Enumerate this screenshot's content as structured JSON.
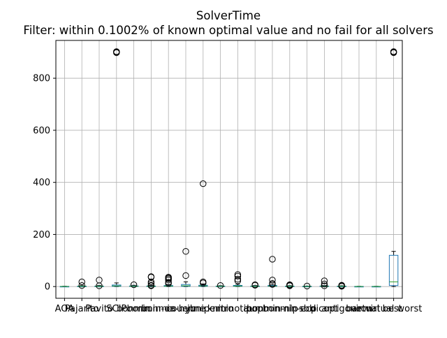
{
  "chart_data": {
    "type": "box",
    "title": "SolverTime",
    "subtitle": "Filter: within 0.1002% of known optimal value and no fail for all solvers",
    "xlabel": "",
    "ylabel": "",
    "ylim": [
      -45,
      945
    ],
    "yticks": [
      0,
      200,
      400,
      600,
      800
    ],
    "grid": true,
    "categories": [
      "AOA",
      "Pajarito",
      "Pavito",
      "SCIP",
      "bonmin",
      "bonmin-oa",
      "bonmin-hyb",
      "couenne",
      "juniper",
      "knitro",
      "minotaur",
      "ipopt",
      "bonmin-nlp",
      "bonmin-ecp",
      "sbb",
      "dicopt",
      "antigone",
      "baron",
      "virtual best",
      "virtual worst"
    ],
    "tick_labels": [
      "AOA",
      "Pajarito",
      "Pavito",
      "SCIP",
      "bonmin",
      "bonmin-oa",
      "bonmin-hyb",
      "couenne",
      "juniper",
      "knitro",
      "minotaur",
      "ipopt",
      "bonmin-nlp",
      "bonmin-ecp",
      "sbb",
      "dicopt",
      "antigone",
      "baron",
      "virtual best",
      "virtual worst"
    ],
    "series": [
      {
        "q1": 0.2,
        "median": 0.4,
        "q3": 0.7,
        "whisker_low": 0,
        "whisker_high": 1.2,
        "fliers": []
      },
      {
        "q1": 0.5,
        "median": 1.0,
        "q3": 1.8,
        "whisker_low": 0,
        "whisker_high": 3.5,
        "fliers": [
          18,
          4
        ]
      },
      {
        "q1": 0.5,
        "median": 1.0,
        "q3": 2.0,
        "whisker_low": 0,
        "whisker_high": 4,
        "fliers": [
          25,
          3
        ]
      },
      {
        "q1": 1.0,
        "median": 2.5,
        "q3": 6.0,
        "whisker_low": 0,
        "whisker_high": 14,
        "fliers": [
          900,
          898,
          902
        ]
      },
      {
        "q1": 0.5,
        "median": 1.2,
        "q3": 2.5,
        "whisker_low": 0,
        "whisker_high": 5,
        "fliers": [
          7
        ]
      },
      {
        "q1": 0.5,
        "median": 1.0,
        "q3": 2.2,
        "whisker_low": 0,
        "whisker_high": 4,
        "fliers": [
          38,
          36,
          18,
          12,
          5,
          3
        ]
      },
      {
        "q1": 0.8,
        "median": 1.8,
        "q3": 4.0,
        "whisker_low": 0,
        "whisker_high": 8,
        "fliers": [
          36,
          33,
          30,
          25,
          16,
          12
        ]
      },
      {
        "q1": 1.0,
        "median": 3.0,
        "q3": 8.0,
        "whisker_low": 0,
        "whisker_high": 18,
        "fliers": [
          135,
          42
        ]
      },
      {
        "q1": 1.0,
        "median": 2.5,
        "q3": 5.0,
        "whisker_low": 0,
        "whisker_high": 10,
        "fliers": [
          395,
          18,
          14
        ]
      },
      {
        "q1": 0.5,
        "median": 1.0,
        "q3": 2.0,
        "whisker_low": 0,
        "whisker_high": 3.5,
        "fliers": [
          4
        ]
      },
      {
        "q1": 1.0,
        "median": 2.0,
        "q3": 4.5,
        "whisker_low": 0,
        "whisker_high": 9,
        "fliers": [
          46,
          40,
          28,
          22
        ]
      },
      {
        "q1": 0.5,
        "median": 1.0,
        "q3": 2.2,
        "whisker_low": 0,
        "whisker_high": 4,
        "fliers": [
          7,
          5
        ]
      },
      {
        "q1": 1.0,
        "median": 2.0,
        "q3": 4.5,
        "whisker_low": 0,
        "whisker_high": 9,
        "fliers": [
          105,
          25,
          12,
          8
        ]
      },
      {
        "q1": 0.5,
        "median": 1.0,
        "q3": 2.0,
        "whisker_low": 0,
        "whisker_high": 3.5,
        "fliers": [
          7,
          5,
          3
        ]
      },
      {
        "q1": 0.3,
        "median": 0.6,
        "q3": 1.2,
        "whisker_low": 0,
        "whisker_high": 2.0,
        "fliers": [
          2
        ]
      },
      {
        "q1": 0.5,
        "median": 1.0,
        "q3": 2.2,
        "whisker_low": 0,
        "whisker_high": 4,
        "fliers": [
          22,
          10,
          3
        ]
      },
      {
        "q1": 0.5,
        "median": 1.0,
        "q3": 1.8,
        "whisker_low": 0,
        "whisker_high": 3,
        "fliers": [
          5,
          3,
          1
        ]
      },
      {
        "q1": 0.1,
        "median": 0.3,
        "q3": 0.6,
        "whisker_low": 0,
        "whisker_high": 1.0,
        "fliers": []
      },
      {
        "q1": 0.1,
        "median": 0.3,
        "q3": 0.6,
        "whisker_low": 0,
        "whisker_high": 1.0,
        "fliers": []
      },
      {
        "q1": 4,
        "median": 18,
        "q3": 120,
        "whisker_low": 0,
        "whisker_high": 135,
        "fliers": [
          900,
          898,
          902
        ]
      }
    ],
    "colors": {
      "box": "#1f77b4",
      "median": "#2ca02c",
      "whisker": "#000000",
      "flier": "#000000",
      "grid": "#b0b0b0",
      "axis": "#000000"
    }
  }
}
